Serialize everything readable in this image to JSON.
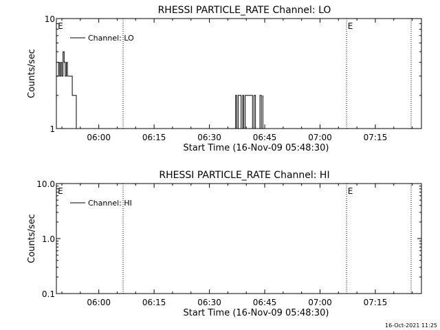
{
  "chart_data": [
    {
      "type": "line",
      "title": "RHESSI PARTICLE_RATE Channel: LO",
      "xlabel": "Start Time (16-Nov-09 05:48:30)",
      "ylabel": "Counts/sec",
      "yscale": "log",
      "ylim": [
        1,
        10
      ],
      "ytick_labels": [
        "1",
        "10"
      ],
      "xlim_minutes": [
        0,
        99
      ],
      "xtick_labels": [
        "06:00",
        "06:15",
        "06:30",
        "06:45",
        "07:00",
        "07:15"
      ],
      "xtick_minutes": [
        11.5,
        26.5,
        41.5,
        56.5,
        71.5,
        86.5
      ],
      "legend": {
        "entries": [
          "Channel: LO"
        ],
        "placement": "top-left"
      },
      "event_lines_minutes": [
        18.1,
        78.7,
        96.2
      ],
      "event_labels": [
        {
          "text": "E",
          "minute": 0.3
        },
        {
          "text": "E",
          "minute": 78.9
        }
      ],
      "series": [
        {
          "name": "Channel: LO",
          "x": [
            0.0,
            0.3,
            0.6,
            0.9,
            1.2,
            1.5,
            1.8,
            2.1,
            2.4,
            2.7,
            3.0,
            3.3,
            4.0,
            4.3,
            4.6,
            5.4,
            5.6,
            5.9,
            6.2,
            6.5,
            6.8,
            7.1,
            7.4,
            7.6,
            7.9,
            8.2,
            8.4,
            8.7,
            9.0,
            9.2,
            9.5,
            9.8
          ],
          "y": [
            3,
            3,
            4,
            3,
            4,
            3,
            5,
            4,
            3,
            4,
            3,
            3,
            3,
            2,
            2,
            1,
            1,
            1,
            1,
            1,
            1,
            1,
            1,
            1,
            1,
            1,
            1,
            1,
            1,
            1,
            1,
            1
          ]
        }
      ],
      "segments": [
        {
          "x": [
            48.2,
            48.6,
            48.9,
            49.3,
            49.7,
            50.1,
            50.5,
            50.8,
            51.2,
            51.6,
            52.0,
            52.4,
            52.8,
            53.2,
            53.6,
            54.0,
            54.4,
            54.8,
            55.2,
            55.6,
            56.0
          ],
          "y": [
            1,
            2,
            1,
            2,
            2,
            1,
            2,
            1,
            2,
            2,
            2,
            2,
            2,
            1,
            2,
            1,
            1,
            1,
            2,
            1,
            2
          ]
        }
      ]
    },
    {
      "type": "line",
      "title": "RHESSI PARTICLE_RATE Channel: HI",
      "xlabel": "Start Time (16-Nov-09 05:48:30)",
      "ylabel": "Counts/sec",
      "yscale": "log",
      "ylim": [
        0.1,
        10
      ],
      "ytick_labels": [
        "0.1",
        "1.0",
        "10.0"
      ],
      "xlim_minutes": [
        0,
        99
      ],
      "xtick_labels": [
        "06:00",
        "06:15",
        "06:30",
        "06:45",
        "07:00",
        "07:15"
      ],
      "xtick_minutes": [
        11.5,
        26.5,
        41.5,
        56.5,
        71.5,
        86.5
      ],
      "legend": {
        "entries": [
          "Channel: HI"
        ],
        "placement": "top-left"
      },
      "event_lines_minutes": [
        18.1,
        78.7,
        96.2
      ],
      "event_labels": [
        {
          "text": "E",
          "minute": 0.3
        },
        {
          "text": "E",
          "minute": 78.9
        }
      ],
      "series": [
        {
          "name": "Channel: HI",
          "x": [],
          "y": []
        }
      ]
    }
  ],
  "timestamp": "16-Oct-2021 11:25"
}
